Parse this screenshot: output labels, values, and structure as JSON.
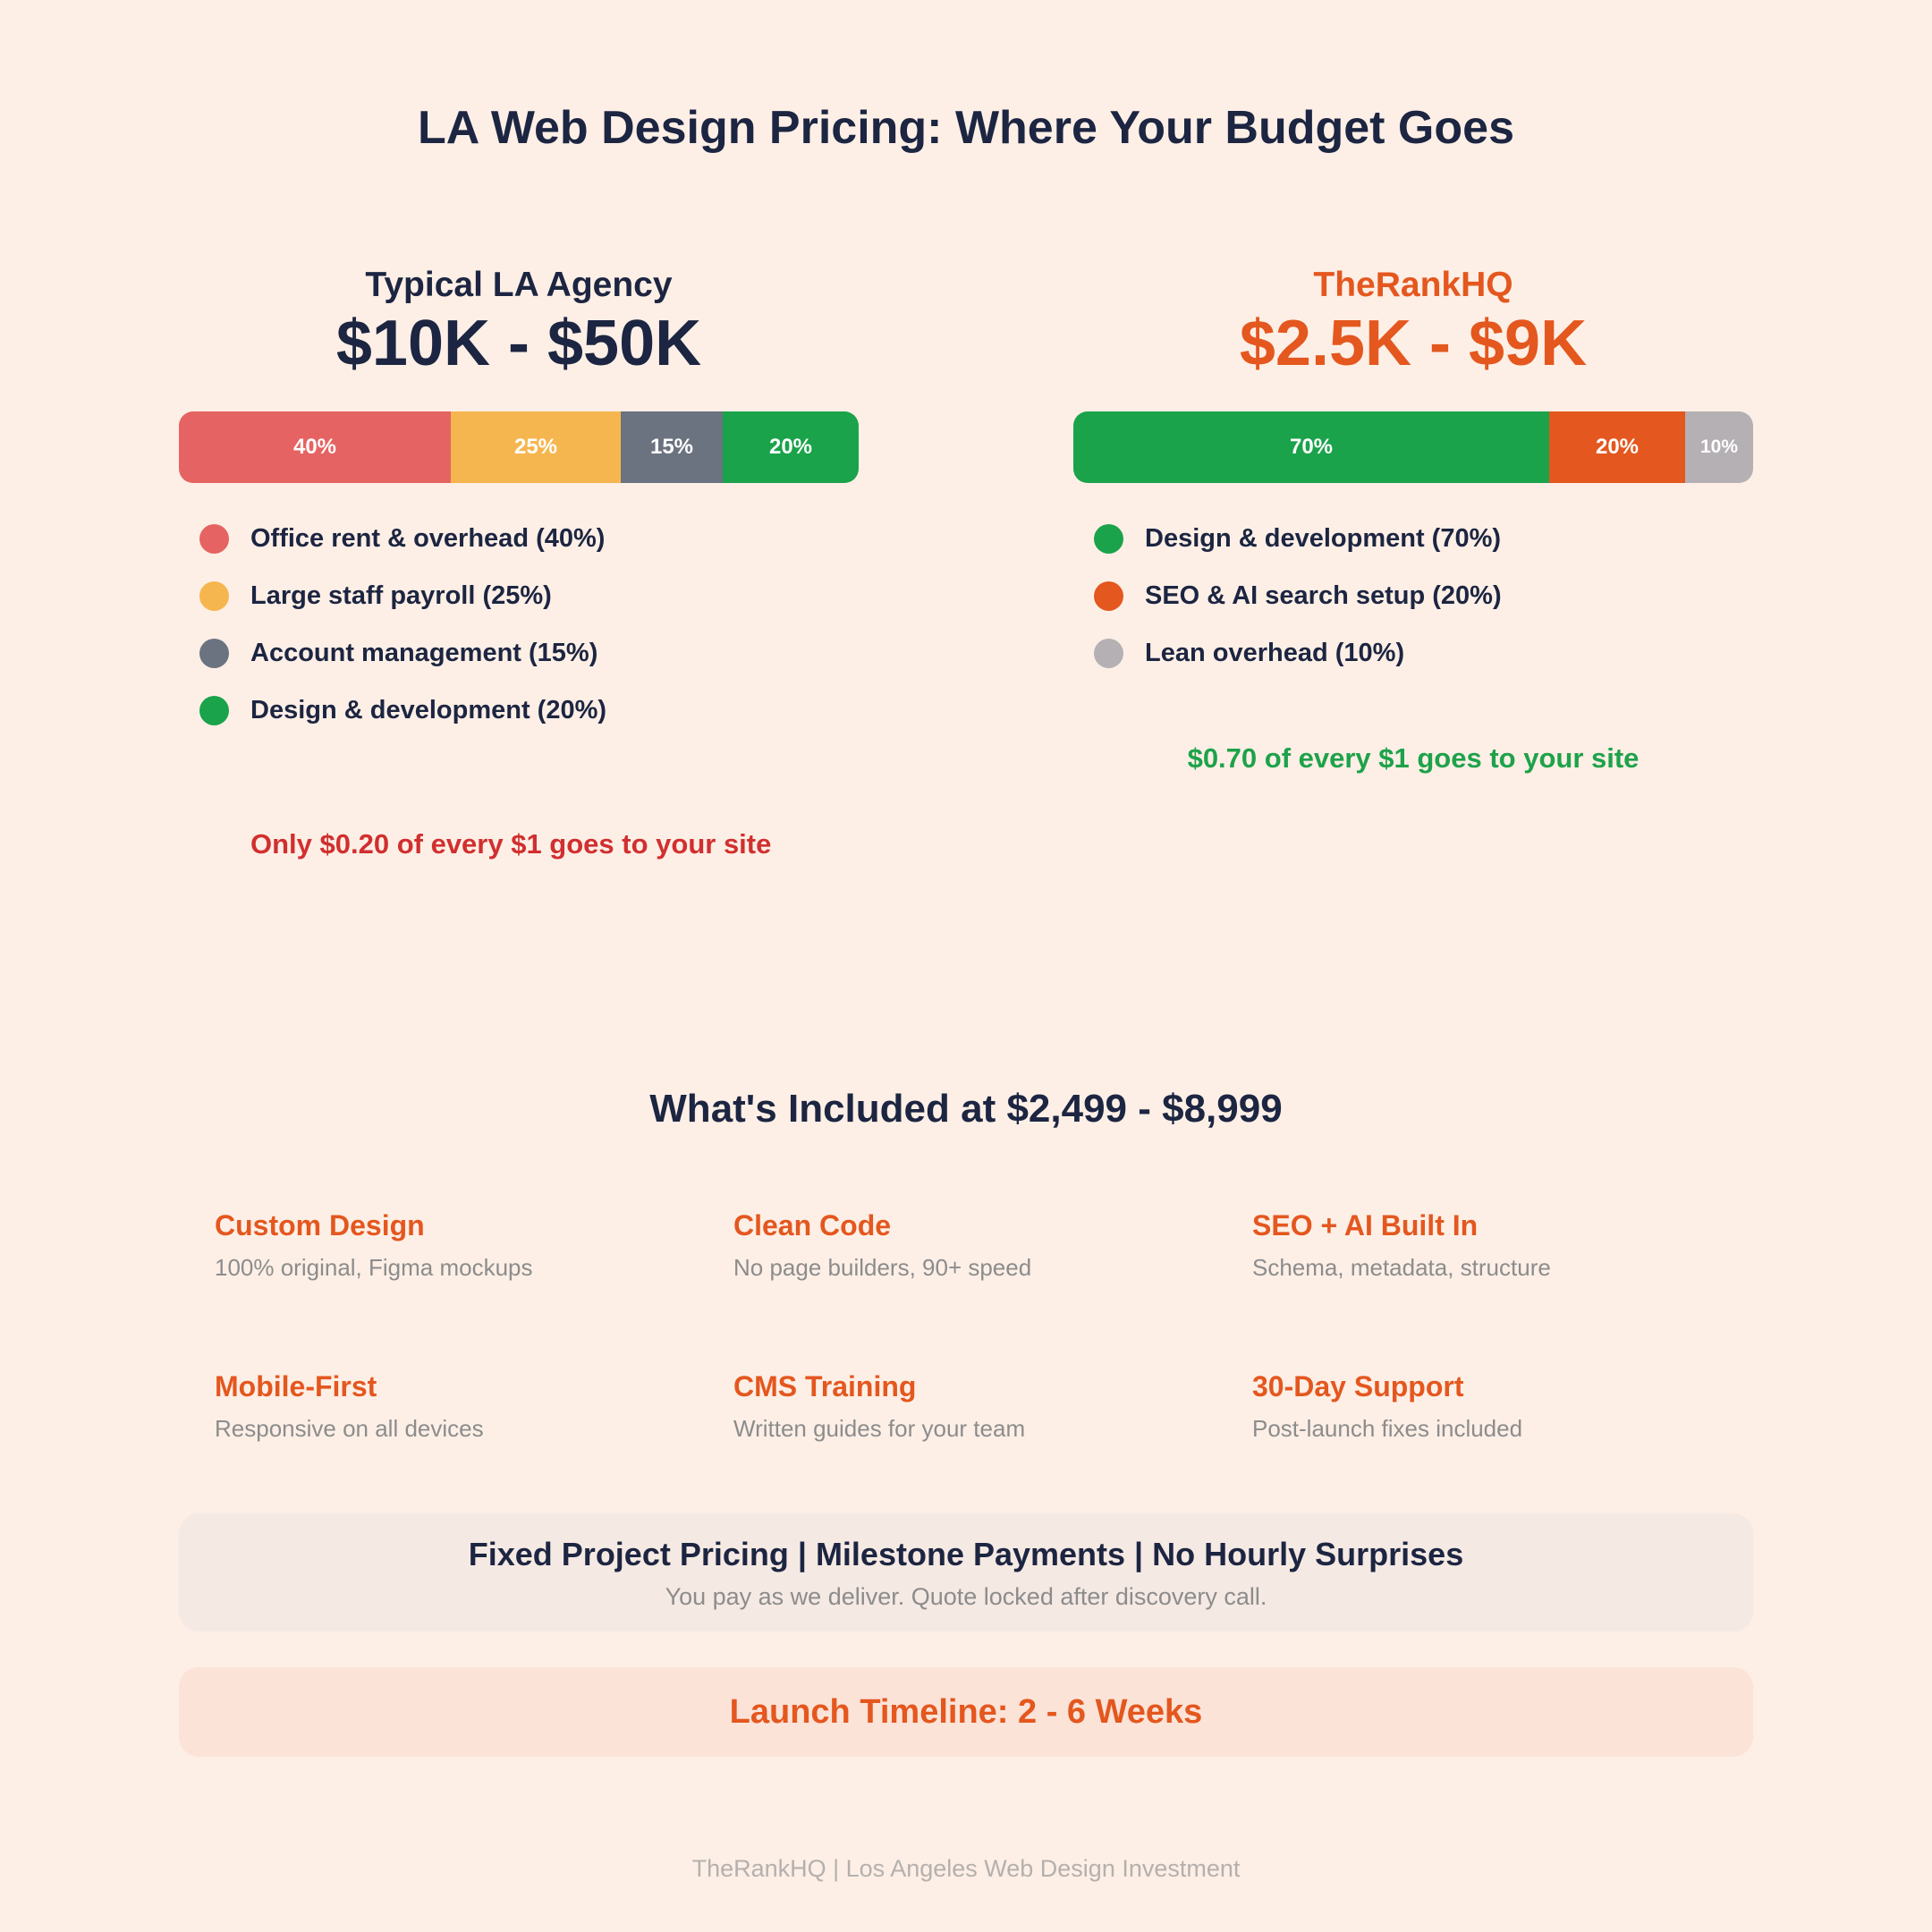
{
  "title": "LA Web Design Pricing: Where Your Budget Goes",
  "colors": {
    "navy": "#1c2541",
    "orange": "#e4571e",
    "red_callout": "#d12f2f",
    "green_callout": "#1ea24a"
  },
  "chart_data": [
    {
      "type": "bar",
      "orientation": "horizontal-stacked",
      "label": "Typical LA Agency",
      "price": "$10K - $50K",
      "segments": [
        {
          "label": "Office rent & overhead (40%)",
          "value": 40,
          "bar_label": "40%",
          "color": "#e56362"
        },
        {
          "label": "Large staff payroll (25%)",
          "value": 25,
          "bar_label": "25%",
          "color": "#f6b64f"
        },
        {
          "label": "Account management (15%)",
          "value": 15,
          "bar_label": "15%",
          "color": "#6b7280"
        },
        {
          "label": "Design & development (20%)",
          "value": 20,
          "bar_label": "20%",
          "color": "#1aa34a"
        }
      ],
      "callout": "Only $0.20 of every $1 goes to your site"
    },
    {
      "type": "bar",
      "orientation": "horizontal-stacked",
      "label": "TheRankHQ",
      "price": "$2.5K - $9K",
      "segments": [
        {
          "label": "Design & development (70%)",
          "value": 70,
          "bar_label": "70%",
          "color": "#1aa34a"
        },
        {
          "label": "SEO & AI search setup (20%)",
          "value": 20,
          "bar_label": "20%",
          "color": "#e4571e"
        },
        {
          "label": "Lean overhead (10%)",
          "value": 10,
          "bar_label": "10%",
          "color": "#b4b0b3"
        }
      ],
      "callout": "$0.70 of every $1 goes to your site"
    }
  ],
  "included": {
    "title": "What's Included at $2,499 - $8,999",
    "features": [
      {
        "title": "Custom Design",
        "desc": "100% original, Figma mockups"
      },
      {
        "title": "Clean Code",
        "desc": "No page builders, 90+ speed"
      },
      {
        "title": "SEO + AI Built In",
        "desc": "Schema, metadata, structure"
      },
      {
        "title": "Mobile-First",
        "desc": "Responsive on all devices"
      },
      {
        "title": "CMS Training",
        "desc": "Written guides for your team"
      },
      {
        "title": "30-Day Support",
        "desc": "Post-launch fixes included"
      }
    ]
  },
  "pricing": {
    "headline": "Fixed Project Pricing | Milestone Payments | No Hourly Surprises",
    "sub": "You pay as we deliver. Quote locked after discovery call."
  },
  "timeline": "Launch Timeline: 2 - 6 Weeks",
  "footer": "TheRankHQ | Los Angeles Web Design Investment"
}
